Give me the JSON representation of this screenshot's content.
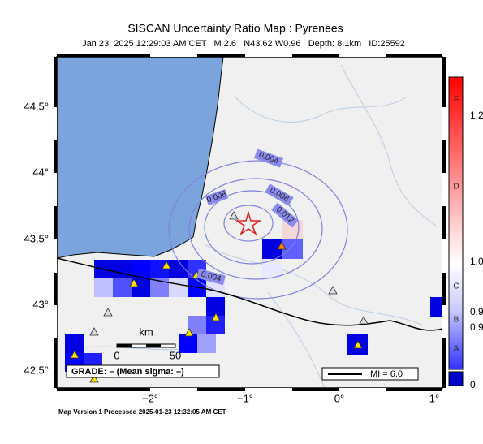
{
  "header": {
    "title": "SISCAN Uncertainty Ratio Map : Pyrenees",
    "subtitle": "Jan 23, 2025 12:29:03 AM CET   M 2.6   N43.62 W0.96   Depth: 8.1km   ID:25592"
  },
  "map": {
    "lat_labels": [
      "44.5°",
      "44°",
      "43.5°",
      "43°",
      "42.5°"
    ],
    "lon_labels": [
      "−2°",
      "−1°",
      "0°",
      "1°"
    ],
    "contour_labels": [
      "0.004",
      "0.008",
      "0.008",
      "0.012",
      "0.004"
    ],
    "scale": {
      "unit": "km",
      "start": "0",
      "end": "50"
    },
    "grade": "GRADE: – (Mean sigma: –)",
    "mi": "MI = 6.0"
  },
  "colorbar": {
    "grades": [
      "F",
      "D",
      "C",
      "B",
      "A"
    ],
    "labels": [
      "1.2",
      "1.0",
      "0.9",
      "0.9",
      "0"
    ]
  },
  "footer": "Map Version 1 Processed 2025-01-23 12:32:05 AM CET"
}
